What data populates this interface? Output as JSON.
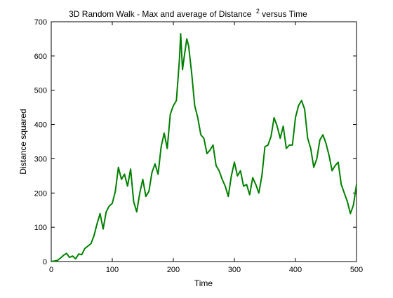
{
  "chart_data": {
    "type": "line",
    "title": {
      "before": "3D Random Walk - Max and average of Distance",
      "superscript": "2",
      "after": " versus Time"
    },
    "xlabel": "Time",
    "ylabel": "Distance squared",
    "xlim": [
      0,
      500
    ],
    "ylim": [
      0,
      700
    ],
    "xticks": [
      0,
      100,
      200,
      300,
      400,
      500
    ],
    "yticks": [
      0,
      100,
      200,
      300,
      400,
      500,
      600,
      700
    ],
    "grid": false,
    "legend": "none",
    "series": [
      {
        "color": "#008000",
        "x": [
          0,
          10,
          15,
          20,
          25,
          30,
          35,
          40,
          45,
          50,
          55,
          60,
          65,
          70,
          75,
          80,
          85,
          90,
          95,
          100,
          105,
          110,
          115,
          120,
          125,
          130,
          135,
          140,
          145,
          150,
          155,
          160,
          165,
          170,
          175,
          180,
          185,
          190,
          195,
          200,
          205,
          210,
          212,
          215,
          218,
          222,
          225,
          230,
          235,
          240,
          245,
          250,
          255,
          260,
          265,
          270,
          275,
          280,
          285,
          290,
          295,
          300,
          305,
          310,
          315,
          320,
          325,
          330,
          335,
          340,
          345,
          350,
          355,
          360,
          365,
          370,
          375,
          380,
          385,
          390,
          395,
          400,
          405,
          410,
          415,
          420,
          425,
          430,
          435,
          440,
          445,
          450,
          455,
          460,
          465,
          470,
          475,
          480,
          485,
          490,
          495,
          500
        ],
        "y": [
          0,
          3,
          10,
          18,
          24,
          12,
          16,
          8,
          22,
          20,
          38,
          45,
          52,
          75,
          110,
          140,
          95,
          145,
          162,
          170,
          205,
          275,
          240,
          255,
          220,
          270,
          175,
          145,
          200,
          240,
          190,
          205,
          260,
          285,
          255,
          335,
          375,
          330,
          430,
          455,
          470,
          590,
          665,
          560,
          600,
          650,
          630,
          550,
          455,
          420,
          370,
          360,
          315,
          325,
          340,
          280,
          265,
          240,
          220,
          190,
          250,
          290,
          250,
          265,
          220,
          225,
          195,
          245,
          225,
          200,
          250,
          335,
          340,
          365,
          420,
          395,
          360,
          395,
          330,
          340,
          340,
          420,
          455,
          470,
          445,
          360,
          330,
          275,
          300,
          355,
          370,
          345,
          310,
          265,
          280,
          290,
          225,
          200,
          175,
          140,
          165,
          225
        ]
      }
    ]
  }
}
